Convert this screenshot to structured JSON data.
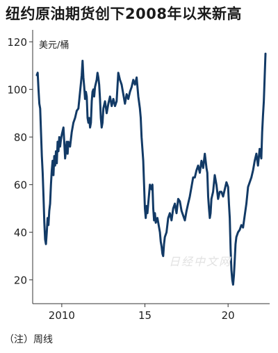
{
  "chart_data": {
    "type": "line",
    "title": "纽约原油期货创下2008年以来新高",
    "unit_label": "美元/桶",
    "note": "（注）周线",
    "ylim": [
      10,
      125
    ],
    "yticks": [
      20,
      40,
      60,
      80,
      100,
      120
    ],
    "xlim": [
      2008.25,
      2022.5
    ],
    "xticks": [
      {
        "value": 2010,
        "label": "2010"
      },
      {
        "value": 2015,
        "label": "15"
      },
      {
        "value": 2020,
        "label": "20"
      }
    ],
    "grid": false,
    "legend": "none",
    "line_color": "#123a66",
    "series": [
      {
        "x": [
          2008.5,
          2008.55,
          2008.6,
          2008.65,
          2008.7,
          2008.75,
          2008.8,
          2008.85,
          2008.9,
          2008.95,
          2009.0,
          2009.05,
          2009.1,
          2009.15,
          2009.2,
          2009.25,
          2009.3,
          2009.35,
          2009.4,
          2009.45,
          2009.5,
          2009.55,
          2009.6,
          2009.65,
          2009.7,
          2009.75,
          2009.8,
          2009.85,
          2009.9,
          2009.95,
          2010.0,
          2010.1,
          2010.2,
          2010.3,
          2010.35,
          2010.4,
          2010.5,
          2010.6,
          2010.7,
          2010.8,
          2010.9,
          2011.0,
          2011.1,
          2011.2,
          2011.25,
          2011.3,
          2011.35,
          2011.4,
          2011.45,
          2011.5,
          2011.55,
          2011.6,
          2011.65,
          2011.7,
          2011.75,
          2011.8,
          2011.85,
          2011.9,
          2011.95,
          2012.0,
          2012.1,
          2012.15,
          2012.2,
          2012.25,
          2012.3,
          2012.35,
          2012.4,
          2012.45,
          2012.5,
          2012.6,
          2012.7,
          2012.8,
          2012.9,
          2013.0,
          2013.1,
          2013.2,
          2013.3,
          2013.4,
          2013.5,
          2013.6,
          2013.7,
          2013.8,
          2013.9,
          2014.0,
          2014.1,
          2014.2,
          2014.3,
          2014.4,
          2014.5,
          2014.6,
          2014.7,
          2014.75,
          2014.8,
          2014.85,
          2014.9,
          2014.95,
          2015.0,
          2015.05,
          2015.1,
          2015.15,
          2015.2,
          2015.3,
          2015.4,
          2015.45,
          2015.5,
          2015.55,
          2015.6,
          2015.65,
          2015.7,
          2015.75,
          2015.8,
          2015.85,
          2015.9,
          2015.95,
          2016.0,
          2016.05,
          2016.1,
          2016.15,
          2016.2,
          2016.3,
          2016.4,
          2016.5,
          2016.6,
          2016.7,
          2016.8,
          2016.9,
          2017.0,
          2017.1,
          2017.2,
          2017.3,
          2017.4,
          2017.5,
          2017.6,
          2017.7,
          2017.8,
          2017.9,
          2018.0,
          2018.1,
          2018.2,
          2018.3,
          2018.4,
          2018.5,
          2018.6,
          2018.7,
          2018.75,
          2018.8,
          2018.85,
          2018.9,
          2018.95,
          2019.0,
          2019.1,
          2019.2,
          2019.3,
          2019.4,
          2019.5,
          2019.6,
          2019.7,
          2019.8,
          2019.9,
          2020.0,
          2020.05,
          2020.1,
          2020.15,
          2020.2,
          2020.25,
          2020.3,
          2020.35,
          2020.4,
          2020.45,
          2020.5,
          2020.6,
          2020.7,
          2020.8,
          2020.9,
          2021.0,
          2021.1,
          2021.2,
          2021.3,
          2021.4,
          2021.5,
          2021.6,
          2021.7,
          2021.8,
          2021.9,
          2022.0,
          2022.05,
          2022.1,
          2022.15,
          2022.2,
          2022.25
        ],
        "y": [
          106,
          107,
          100,
          94,
          92,
          82,
          72,
          65,
          55,
          44,
          37,
          35,
          40,
          46,
          43,
          49,
          52,
          60,
          66,
          70,
          64,
          72,
          68,
          74,
          69,
          78,
          74,
          80,
          76,
          79,
          81,
          84,
          71,
          78,
          73,
          78,
          76,
          82,
          86,
          88,
          91,
          92,
          99,
          106,
          112,
          105,
          101,
          96,
          99,
          97,
          88,
          86,
          88,
          84,
          86,
          95,
          99,
          100,
          97,
          101,
          104,
          107,
          105,
          102,
          96,
          88,
          84,
          86,
          92,
          95,
          90,
          94,
          97,
          93,
          96,
          93,
          95,
          107,
          104,
          102,
          98,
          94,
          98,
          96,
          99,
          101,
          104,
          102,
          105,
          97,
          92,
          88,
          80,
          75,
          70,
          60,
          50,
          46,
          51,
          48,
          52,
          60,
          58,
          60,
          50,
          45,
          48,
          44,
          45,
          46,
          44,
          42,
          40,
          36,
          34,
          31,
          30,
          35,
          38,
          40,
          46,
          48,
          45,
          50,
          52,
          48,
          54,
          53,
          49,
          47,
          45,
          49,
          52,
          55,
          59,
          63,
          63,
          66,
          68,
          65,
          70,
          67,
          73,
          67,
          65,
          55,
          50,
          46,
          48,
          54,
          57,
          64,
          60,
          54,
          57,
          57,
          55,
          58,
          61,
          59,
          52,
          46,
          33,
          24,
          20,
          18,
          22,
          28,
          35,
          38,
          40,
          41,
          43,
          42,
          47,
          52,
          59,
          61,
          63,
          66,
          70,
          73,
          68,
          75,
          71,
          82,
          89,
          95,
          105,
          115
        ]
      }
    ]
  }
}
